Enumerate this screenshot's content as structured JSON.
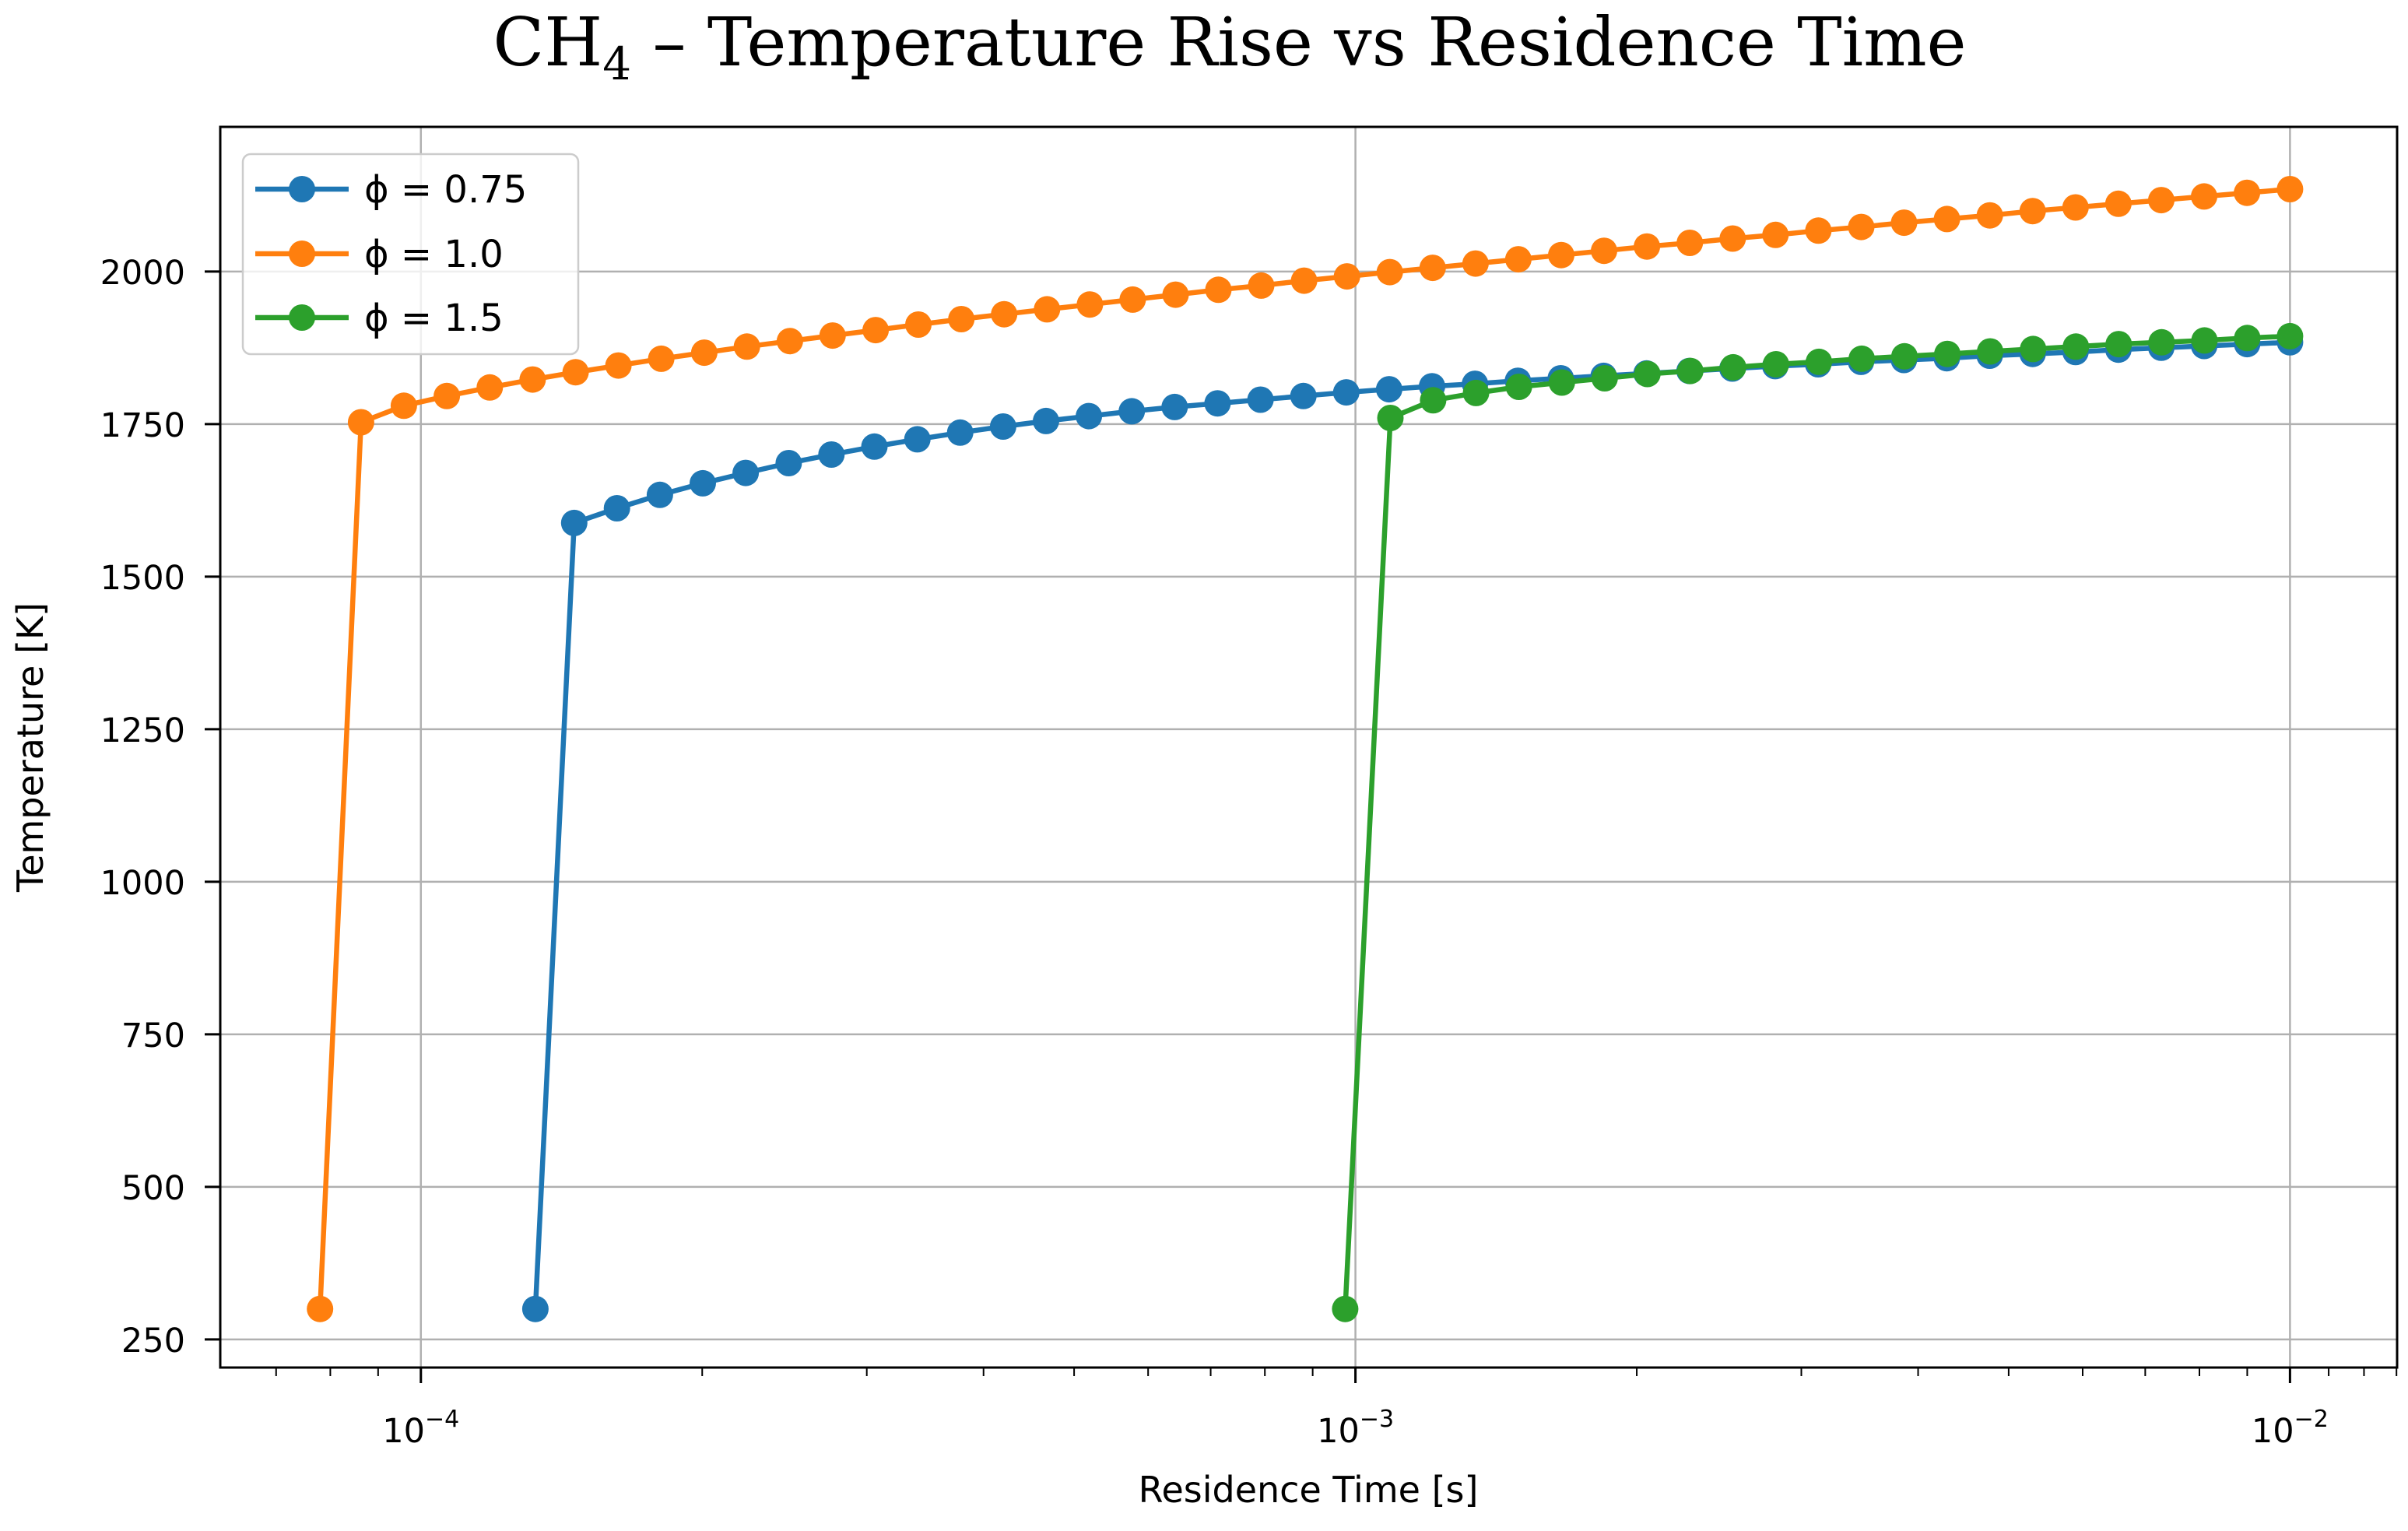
{
  "title": {
    "prefix": "CH",
    "subscript": "4",
    "suffix": " – Temperature Rise vs Residence Time"
  },
  "chart_data": {
    "type": "line",
    "title": "CH4 – Temperature Rise vs Residence Time",
    "xlabel": "Residence Time [s]",
    "ylabel": "Temperature [K]",
    "x_scale": "log",
    "grid": true,
    "grid_color": "#b0b0b0",
    "legend_position": "upper left",
    "xlim": [
      6.1e-05,
      0.01302
    ],
    "ylim": [
      204,
      2237
    ],
    "y_ticks": [
      250,
      500,
      750,
      1000,
      1250,
      1500,
      1750,
      2000
    ],
    "x_major_ticks": [
      {
        "value": 0.0001,
        "base": "10",
        "exponent": "−4"
      },
      {
        "value": 0.001,
        "base": "10",
        "exponent": "−3"
      },
      {
        "value": 0.01,
        "base": "10",
        "exponent": "−2"
      }
    ],
    "x_minor_ticks": [
      7e-05,
      8e-05,
      9e-05,
      0.0002,
      0.0003,
      0.0004,
      0.0005,
      0.0006,
      0.0007,
      0.0008,
      0.0009,
      0.002,
      0.003,
      0.004,
      0.005,
      0.006,
      0.007,
      0.008,
      0.009,
      0.011,
      0.012,
      0.013
    ],
    "series": [
      {
        "name": "ϕ = 0.75",
        "color": "#1f77b4",
        "x": [
          0.0001326,
          0.0001459,
          0.0001621,
          0.0001802,
          0.0002003,
          0.0002226,
          0.0002475,
          0.000275,
          0.0003057,
          0.0003398,
          0.0003776,
          0.0004198,
          0.0004666,
          0.0005186,
          0.0005763,
          0.0006406,
          0.000712,
          0.0007914,
          0.0008796,
          0.0009777,
          0.0010867,
          0.0012078,
          0.0013425,
          0.0014921,
          0.0016585,
          0.0018434,
          0.0020489,
          0.0022773,
          0.0025312,
          0.0028133,
          0.0031269,
          0.0034754,
          0.0038628,
          0.0042934,
          0.0047719,
          0.0053039,
          0.0058951,
          0.0065524,
          0.0072828,
          0.0080946,
          0.0089983,
          0.01
        ],
        "y": [
          300,
          1588,
          1612,
          1634,
          1653,
          1670,
          1686,
          1700,
          1713,
          1725,
          1736,
          1746,
          1755,
          1763,
          1771,
          1778,
          1784,
          1790,
          1796,
          1802,
          1807,
          1812,
          1816,
          1821,
          1825,
          1829,
          1833,
          1837,
          1841,
          1845,
          1848,
          1852,
          1855,
          1858,
          1862,
          1865,
          1868,
          1872,
          1875,
          1878,
          1881,
          1884
        ]
      },
      {
        "name": "ϕ = 1.0",
        "color": "#ff7f0e",
        "x": [
          7.8e-05,
          8.63e-05,
          9.59e-05,
          0.0001066,
          0.0001185,
          0.0001317,
          0.0001464,
          0.0001627,
          0.0001808,
          0.000201,
          0.0002233,
          0.0002482,
          0.0002758,
          0.0003066,
          0.0003407,
          0.0003787,
          0.0004208,
          0.0004677,
          0.0005198,
          0.0005777,
          0.000642,
          0.0007134,
          0.0007928,
          0.0008812,
          0.0009793,
          0.0010883,
          0.0012096,
          0.0013443,
          0.001494,
          0.0016604,
          0.0018452,
          0.0020508,
          0.0022792,
          0.002533,
          0.0028151,
          0.0031287,
          0.0034771,
          0.0038644,
          0.0042948,
          0.0047731,
          0.0053047,
          0.0058955,
          0.0065522,
          0.0072819,
          0.0080929,
          0.0089942,
          0.01
        ],
        "y": [
          300,
          1753,
          1780,
          1796,
          1810,
          1823,
          1835,
          1846,
          1857,
          1867,
          1877,
          1886,
          1895,
          1904,
          1913,
          1922,
          1930,
          1938,
          1946,
          1954,
          1962,
          1970,
          1977,
          1985,
          1992,
          1999,
          2006,
          2013,
          2020,
          2027,
          2034,
          2041,
          2047,
          2054,
          2060,
          2067,
          2073,
          2080,
          2086,
          2092,
          2099,
          2105,
          2111,
          2117,
          2123,
          2129,
          2135
        ]
      },
      {
        "name": "ϕ = 1.5",
        "color": "#2ca02c",
        "x": [
          0.000975,
          0.00109,
          0.001211,
          0.001346,
          0.001496,
          0.001663,
          0.001848,
          0.002053,
          0.002282,
          0.002536,
          0.002818,
          0.003133,
          0.003481,
          0.003868,
          0.004299,
          0.004777,
          0.00531,
          0.005901,
          0.006557,
          0.007288,
          0.0081,
          0.009001,
          0.01
        ],
        "y": [
          300,
          1760,
          1789,
          1801,
          1811,
          1818,
          1825,
          1832,
          1837,
          1843,
          1848,
          1852,
          1857,
          1861,
          1865,
          1869,
          1873,
          1877,
          1881,
          1884,
          1887,
          1891,
          1894
        ]
      }
    ]
  }
}
